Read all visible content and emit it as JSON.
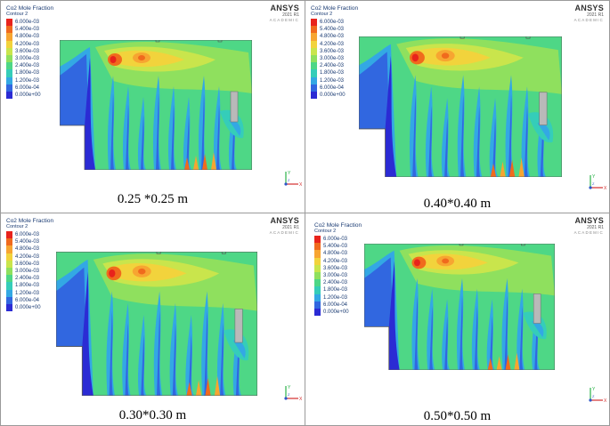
{
  "legend": {
    "title": "Co2 Mole Fraction",
    "subtitle": "Contour 2",
    "levels": [
      "6.000e-03",
      "5.400e-03",
      "4.800e-03",
      "4.200e-03",
      "3.600e-03",
      "3.000e-03",
      "2.400e-03",
      "1.800e-03",
      "1.200e-03",
      "6.000e-04",
      "0.000e+00"
    ],
    "colors": [
      "#e8231c",
      "#f06a1d",
      "#f7a531",
      "#f2d33c",
      "#c9e54c",
      "#8fe05e",
      "#4ed786",
      "#35cdb9",
      "#33a8e4",
      "#3167e0",
      "#2b2bd4"
    ]
  },
  "brand": {
    "name": "ANSYS",
    "year": "2021 R1",
    "edition": "ACADEMIC"
  },
  "axes": {
    "x": "X",
    "y": "Y",
    "z": "Z"
  },
  "panels": [
    {
      "caption": "0.25 *0.25 m"
    },
    {
      "caption": "0.40*0.40 m"
    },
    {
      "caption": "0.30*0.30 m"
    },
    {
      "caption": "0.50*0.50 m"
    }
  ]
}
